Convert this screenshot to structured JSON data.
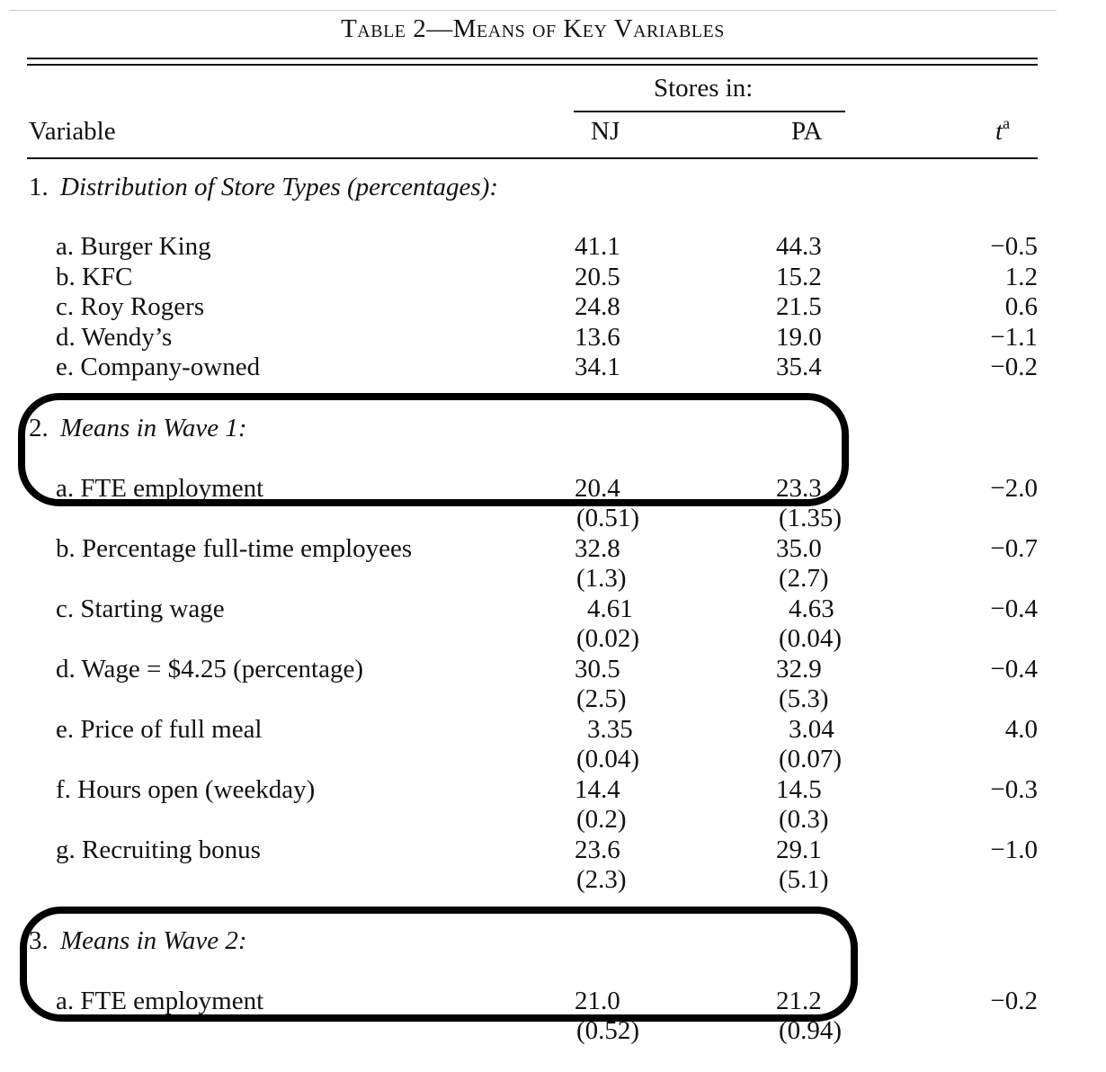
{
  "title": "Table 2—Means of Key Variables",
  "header": {
    "variable_label": "Variable",
    "group_label": "Stores in:",
    "col_nj": "NJ",
    "col_pa": "PA",
    "col_t": "t",
    "col_t_sup": "a"
  },
  "section1": {
    "heading_num": "1.",
    "heading": "Distribution of Store Types (percentages):",
    "rows": [
      {
        "label": "a. Burger King",
        "nj": "41.1",
        "pa": "44.3",
        "t": "−0.5"
      },
      {
        "label": "b. KFC",
        "nj": "20.5",
        "pa": "15.2",
        "t": "1.2"
      },
      {
        "label": "c. Roy Rogers",
        "nj": "24.8",
        "pa": "21.5",
        "t": "0.6"
      },
      {
        "label": "d. Wendy’s",
        "nj": "13.6",
        "pa": "19.0",
        "t": "−1.1"
      },
      {
        "label": "e. Company-owned",
        "nj": "34.1",
        "pa": "35.4",
        "t": "−0.2"
      }
    ]
  },
  "section2": {
    "heading_num": "2.",
    "heading": "Means in Wave 1:",
    "rows": [
      {
        "label": "a. FTE employment",
        "nj": "20.4",
        "nj_se": "(0.51)",
        "pa": "23.3",
        "pa_se": "(1.35)",
        "t": "−2.0"
      },
      {
        "label": "b. Percentage full-time employees",
        "nj": "32.8",
        "nj_se": "(1.3)",
        "pa": "35.0",
        "pa_se": "(2.7)",
        "t": "−0.7"
      },
      {
        "label": "c. Starting wage",
        "nj": "4.61",
        "nj_se": "(0.02)",
        "pa": "4.63",
        "pa_se": "(0.04)",
        "t": "−0.4"
      },
      {
        "label": "d. Wage = $4.25 (percentage)",
        "nj": "30.5",
        "nj_se": "(2.5)",
        "pa": "32.9",
        "pa_se": "(5.3)",
        "t": "−0.4"
      },
      {
        "label": "e. Price of full meal",
        "nj": "3.35",
        "nj_se": "(0.04)",
        "pa": "3.04",
        "pa_se": "(0.07)",
        "t": "4.0"
      },
      {
        "label": "f. Hours open (weekday)",
        "nj": "14.4",
        "nj_se": "(0.2)",
        "pa": "14.5",
        "pa_se": "(0.3)",
        "t": "−0.3"
      },
      {
        "label": "g. Recruiting bonus",
        "nj": "23.6",
        "nj_se": "(2.3)",
        "pa": "29.1",
        "pa_se": "(5.1)",
        "t": "−1.0"
      }
    ]
  },
  "section3": {
    "heading_num": "3.",
    "heading": "Means in Wave 2:",
    "rows": [
      {
        "label": "a. FTE employment",
        "nj": "21.0",
        "nj_se": "(0.52)",
        "pa": "21.2",
        "pa_se": "(0.94)",
        "t": "−0.2"
      }
    ]
  }
}
